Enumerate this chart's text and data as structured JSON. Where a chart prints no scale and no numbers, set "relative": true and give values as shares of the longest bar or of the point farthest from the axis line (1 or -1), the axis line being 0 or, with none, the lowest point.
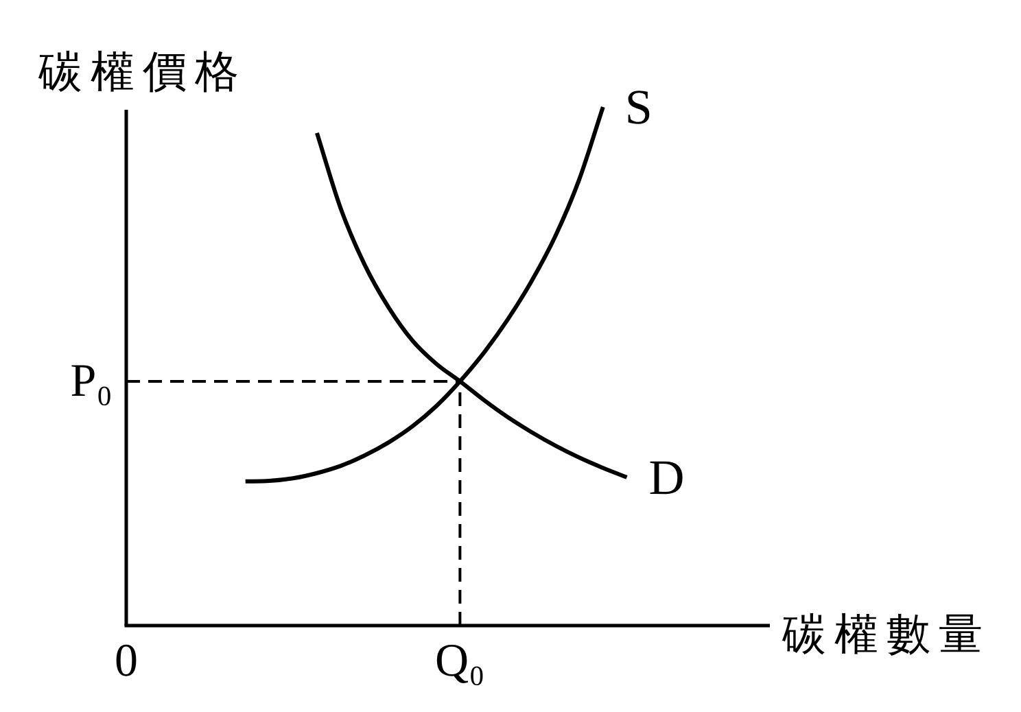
{
  "chart_data": {
    "type": "line",
    "relative": true,
    "xlabel": "碳權數量",
    "ylabel": "碳權價格",
    "categories": [
      "0",
      null,
      null,
      null,
      null,
      null,
      null,
      null,
      null,
      null,
      null,
      null,
      null,
      null,
      "Q₀",
      null,
      null,
      null,
      null,
      null,
      null,
      null,
      null,
      null,
      null,
      null,
      null,
      null
    ],
    "series": [
      {
        "name": "S",
        "color": "#000000",
        "values": [
          null,
          null,
          null,
          null,
          null,
          0.278,
          0.279,
          0.284,
          0.294,
          0.308,
          0.328,
          0.353,
          0.384,
          0.423,
          0.471,
          0.526,
          0.59,
          0.664,
          0.751,
          0.86,
          1.0,
          null,
          null,
          null,
          null,
          null,
          null,
          null
        ]
      },
      {
        "name": "D",
        "color": "#000000",
        "values": [
          null,
          null,
          null,
          null,
          null,
          null,
          null,
          null,
          0.95,
          0.804,
          0.696,
          0.614,
          0.55,
          0.505,
          0.471,
          0.435,
          0.402,
          0.373,
          0.347,
          0.324,
          0.304,
          0.286,
          null,
          null,
          null,
          null,
          null,
          null
        ]
      }
    ],
    "line_style": "solid",
    "ref_lines": [
      {
        "axis": "y",
        "value": 0.471,
        "label": "P₀",
        "color": "#000000",
        "line_style": "dashed"
      },
      {
        "axis": "x",
        "value": "Q₀",
        "color": "#000000",
        "line_style": "dashed"
      }
    ]
  }
}
